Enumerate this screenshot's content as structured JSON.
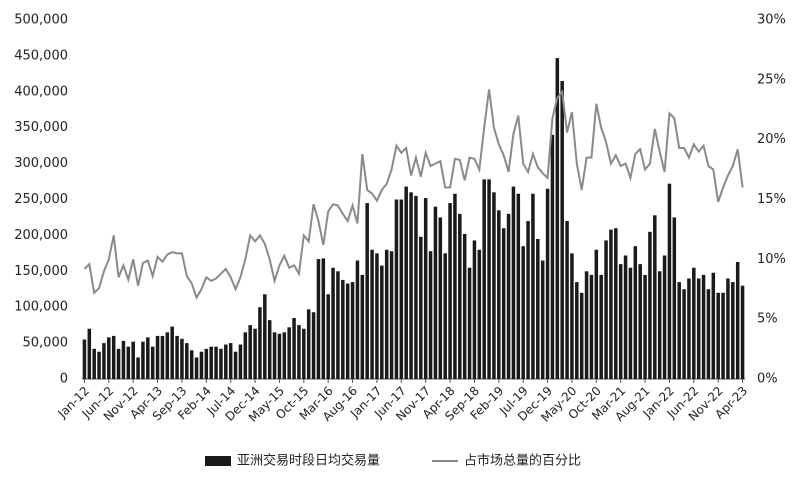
{
  "chart_data": {
    "type": "bar-line",
    "categories": [
      "Jan-12",
      null,
      null,
      null,
      null,
      "Jun-12",
      null,
      null,
      null,
      null,
      "Nov-12",
      null,
      null,
      null,
      null,
      "Apr-13",
      null,
      null,
      null,
      null,
      "Sep-13",
      null,
      null,
      null,
      null,
      "Feb-14",
      null,
      null,
      null,
      null,
      "Jul-14",
      null,
      null,
      null,
      null,
      "Dec-14",
      null,
      null,
      null,
      null,
      "May-15",
      null,
      null,
      null,
      null,
      "Oct-15",
      null,
      null,
      null,
      null,
      "Mar-16",
      null,
      null,
      null,
      null,
      "Aug-16",
      null,
      null,
      null,
      null,
      "Jan-17",
      null,
      null,
      null,
      null,
      "Jun-17",
      null,
      null,
      null,
      null,
      "Nov-17",
      null,
      null,
      null,
      null,
      "Apr-18",
      null,
      null,
      null,
      null,
      "Sep-18",
      null,
      null,
      null,
      null,
      "Feb-19",
      null,
      null,
      null,
      null,
      "Jul-19",
      null,
      null,
      null,
      null,
      "Dec-19",
      null,
      null,
      null,
      null,
      "May-20",
      null,
      null,
      null,
      null,
      "Oct-20",
      null,
      null,
      null,
      null,
      "Mar-21",
      null,
      null,
      null,
      null,
      "Aug-21",
      null,
      null,
      null,
      null,
      "Jan-22",
      null,
      null,
      null,
      null,
      "Jun-22",
      null,
      null,
      null,
      null,
      "Nov-22",
      null,
      null,
      null,
      null,
      "Apr-23"
    ],
    "series": [
      {
        "name": "亚洲交易时段日均交易量",
        "color": "#1a1a1a",
        "values": [
          55000,
          70000,
          42000,
          38000,
          50000,
          58000,
          60000,
          42000,
          53000,
          45000,
          52000,
          30000,
          52000,
          58000,
          45000,
          60000,
          60000,
          65000,
          73000,
          60000,
          56000,
          50000,
          40000,
          30000,
          38000,
          42000,
          45000,
          45000,
          42000,
          48000,
          50000,
          38000,
          48000,
          65000,
          75000,
          70000,
          100000,
          118000,
          82000,
          65000,
          63000,
          65000,
          72000,
          85000,
          75000,
          70000,
          97000,
          93000,
          167000,
          168000,
          118000,
          155000,
          150000,
          138000,
          133000,
          135000,
          165000,
          145000,
          245000,
          180000,
          175000,
          158000,
          180000,
          178000,
          250000,
          250000,
          268000,
          260000,
          255000,
          198000,
          252000,
          178000,
          240000,
          225000,
          175000,
          245000,
          258000,
          230000,
          202000,
          155000,
          193000,
          180000,
          278000,
          278000,
          260000,
          235000,
          210000,
          230000,
          268000,
          258000,
          185000,
          220000,
          258000,
          195000,
          165000,
          265000,
          340000,
          447000,
          415000,
          220000,
          175000,
          135000,
          120000,
          150000,
          145000,
          180000,
          145000,
          193000,
          208000,
          210000,
          160000,
          172000,
          155000,
          185000,
          160000,
          145000,
          205000,
          228000,
          150000,
          172000,
          272000,
          225000,
          135000,
          125000,
          140000,
          155000,
          140000,
          145000,
          125000,
          148000,
          120000,
          120000,
          140000,
          135000,
          163000,
          130000
        ]
      },
      {
        "name": "占市场总量的百分比",
        "color": "#8a8a8a",
        "axis": "y2",
        "values": [
          9.2,
          9.6,
          7.2,
          7.6,
          9.0,
          10.0,
          12.0,
          8.5,
          9.5,
          8.3,
          10.0,
          7.8,
          9.7,
          9.9,
          8.6,
          10.2,
          9.8,
          10.4,
          10.6,
          10.5,
          10.5,
          8.6,
          8.0,
          6.8,
          7.5,
          8.5,
          8.2,
          8.4,
          8.8,
          9.2,
          8.5,
          7.5,
          8.5,
          10.0,
          12.0,
          11.5,
          12.0,
          11.3,
          10.0,
          8.2,
          9.5,
          10.3,
          9.3,
          9.5,
          8.8,
          12.0,
          11.5,
          14.6,
          13.2,
          11.2,
          14.0,
          14.6,
          14.5,
          13.8,
          13.2,
          14.5,
          13.0,
          18.8,
          15.8,
          15.5,
          14.9,
          15.8,
          16.3,
          17.5,
          19.5,
          18.9,
          19.3,
          17.0,
          18.5,
          16.9,
          18.9,
          17.8,
          18.0,
          18.2,
          16.0,
          16.0,
          18.4,
          18.3,
          16.6,
          18.5,
          18.4,
          17.5,
          21.0,
          24.2,
          21.0,
          19.6,
          18.7,
          17.3,
          20.5,
          22.0,
          18.0,
          17.3,
          18.8,
          17.7,
          17.2,
          16.8,
          21.8,
          23.5,
          24.0,
          20.6,
          22.3,
          18.0,
          15.8,
          18.5,
          18.5,
          23.0,
          21.0,
          19.8,
          18.0,
          18.7,
          17.8,
          18.0,
          16.8,
          18.8,
          19.2,
          17.5,
          18.0,
          20.9,
          19.0,
          17.3,
          22.2,
          21.8,
          19.3,
          19.3,
          18.5,
          19.6,
          19.0,
          19.5,
          17.8,
          17.5,
          14.8,
          16.0,
          17.0,
          17.8,
          19.2,
          16.0
        ]
      }
    ],
    "ylim": [
      0,
      500000
    ],
    "yticks": [
      {
        "value": 0,
        "label": "0"
      },
      {
        "value": 50000,
        "label": "50,000"
      },
      {
        "value": 100000,
        "label": "100,000"
      },
      {
        "value": 150000,
        "label": "150,000"
      },
      {
        "value": 200000,
        "label": "200,000"
      },
      {
        "value": 250000,
        "label": "250,000"
      },
      {
        "value": 300000,
        "label": "300,000"
      },
      {
        "value": 350000,
        "label": "350,000"
      },
      {
        "value": 400000,
        "label": "400,000"
      },
      {
        "value": 450000,
        "label": "450,000"
      },
      {
        "value": 500000,
        "label": "500,000"
      }
    ],
    "y2lim": [
      0,
      30
    ],
    "y2ticks": [
      {
        "value": 0,
        "label": "0%"
      },
      {
        "value": 5,
        "label": "5%"
      },
      {
        "value": 10,
        "label": "10%"
      },
      {
        "value": 15,
        "label": "15%"
      },
      {
        "value": 20,
        "label": "20%"
      },
      {
        "value": 25,
        "label": "25%"
      },
      {
        "value": 30,
        "label": "30%"
      }
    ],
    "legend": "bottom"
  }
}
